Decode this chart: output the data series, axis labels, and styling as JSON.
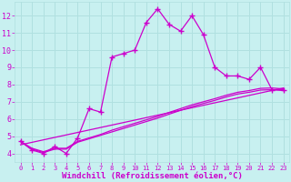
{
  "bg_color": "#c8f0f0",
  "grid_color": "#b0e0e0",
  "line_color": "#cc00cc",
  "xlim": [
    -0.5,
    23.5
  ],
  "ylim": [
    3.5,
    12.8
  ],
  "xticks": [
    0,
    1,
    2,
    3,
    4,
    5,
    6,
    7,
    8,
    9,
    10,
    11,
    12,
    13,
    14,
    15,
    16,
    17,
    18,
    19,
    20,
    21,
    22,
    23
  ],
  "yticks": [
    4,
    5,
    6,
    7,
    8,
    9,
    10,
    11,
    12
  ],
  "xlabel": "Windchill (Refroidissement éolien,°C)",
  "main_x": [
    0,
    1,
    2,
    3,
    4,
    5,
    6,
    7,
    8,
    9,
    10,
    11,
    12,
    13,
    14,
    15,
    16,
    17,
    18,
    19,
    20,
    21,
    22,
    23
  ],
  "main_y": [
    4.7,
    4.2,
    4.0,
    4.4,
    4.0,
    4.9,
    6.6,
    6.4,
    9.6,
    9.8,
    10.0,
    11.6,
    12.4,
    11.5,
    11.1,
    12.0,
    10.9,
    9.0,
    8.5,
    8.5,
    8.3,
    9.0,
    7.7,
    7.7
  ],
  "smooth1_x": [
    0,
    1,
    2,
    3,
    4,
    5,
    6,
    7,
    8,
    9,
    10,
    11,
    12,
    13,
    14,
    15,
    16,
    17,
    18,
    19,
    20,
    21,
    22,
    23
  ],
  "smooth1_y": [
    4.7,
    4.3,
    4.1,
    4.3,
    4.3,
    4.7,
    4.9,
    5.1,
    5.35,
    5.55,
    5.75,
    5.95,
    6.15,
    6.38,
    6.6,
    6.82,
    7.0,
    7.18,
    7.38,
    7.55,
    7.65,
    7.78,
    7.8,
    7.75
  ],
  "smooth2_x": [
    0,
    1,
    2,
    3,
    4,
    5,
    6,
    7,
    8,
    9,
    10,
    11,
    12,
    13,
    14,
    15,
    16,
    17,
    18,
    19,
    20,
    21,
    22,
    23
  ],
  "smooth2_y": [
    4.7,
    4.25,
    4.05,
    4.25,
    4.25,
    4.65,
    4.85,
    5.05,
    5.25,
    5.45,
    5.65,
    5.85,
    6.05,
    6.28,
    6.5,
    6.72,
    6.9,
    7.08,
    7.28,
    7.45,
    7.55,
    7.68,
    7.7,
    7.65
  ],
  "trend_x": [
    0,
    23
  ],
  "trend_y": [
    4.5,
    7.8
  ],
  "xlabel_fontsize": 6.5,
  "tick_fontsize_x": 5,
  "tick_fontsize_y": 6
}
